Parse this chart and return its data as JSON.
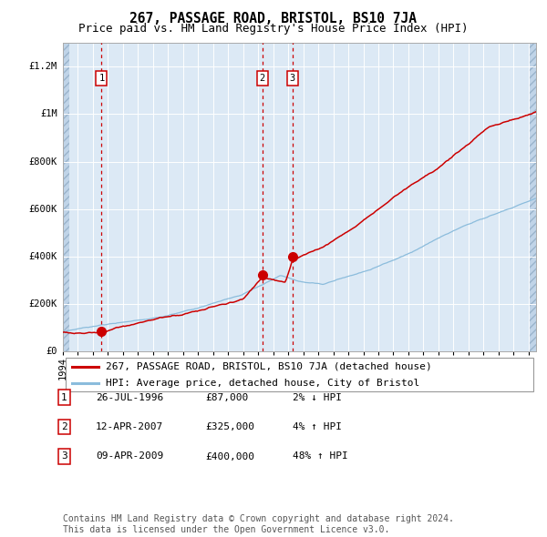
{
  "title": "267, PASSAGE ROAD, BRISTOL, BS10 7JA",
  "subtitle": "Price paid vs. HM Land Registry's House Price Index (HPI)",
  "xlim": [
    1994.0,
    2025.5
  ],
  "ylim": [
    0,
    1300000
  ],
  "yticks": [
    0,
    200000,
    400000,
    600000,
    800000,
    1000000,
    1200000
  ],
  "ytick_labels": [
    "£0",
    "£200K",
    "£400K",
    "£600K",
    "£800K",
    "£1M",
    "£1.2M"
  ],
  "bg_color": "#dce9f5",
  "hatch_color": "#c0d4e8",
  "grid_color": "#ffffff",
  "sale_dates": [
    1996.57,
    2007.28,
    2009.28
  ],
  "sale_prices": [
    87000,
    325000,
    400000
  ],
  "sale_labels": [
    "1",
    "2",
    "3"
  ],
  "red_line_color": "#cc0000",
  "blue_line_color": "#8bbcdc",
  "sale_dot_color": "#cc0000",
  "vline_color": "#cc0000",
  "legend_label_red": "267, PASSAGE ROAD, BRISTOL, BS10 7JA (detached house)",
  "legend_label_blue": "HPI: Average price, detached house, City of Bristol",
  "table_rows": [
    [
      "1",
      "26-JUL-1996",
      "£87,000",
      "2% ↓ HPI"
    ],
    [
      "2",
      "12-APR-2007",
      "£325,000",
      "4% ↑ HPI"
    ],
    [
      "3",
      "09-APR-2009",
      "£400,000",
      "48% ↑ HPI"
    ]
  ],
  "footer_text": "Contains HM Land Registry data © Crown copyright and database right 2024.\nThis data is licensed under the Open Government Licence v3.0.",
  "title_fontsize": 10.5,
  "subtitle_fontsize": 9,
  "tick_fontsize": 7.5,
  "legend_fontsize": 8,
  "table_fontsize": 8,
  "footer_fontsize": 7
}
